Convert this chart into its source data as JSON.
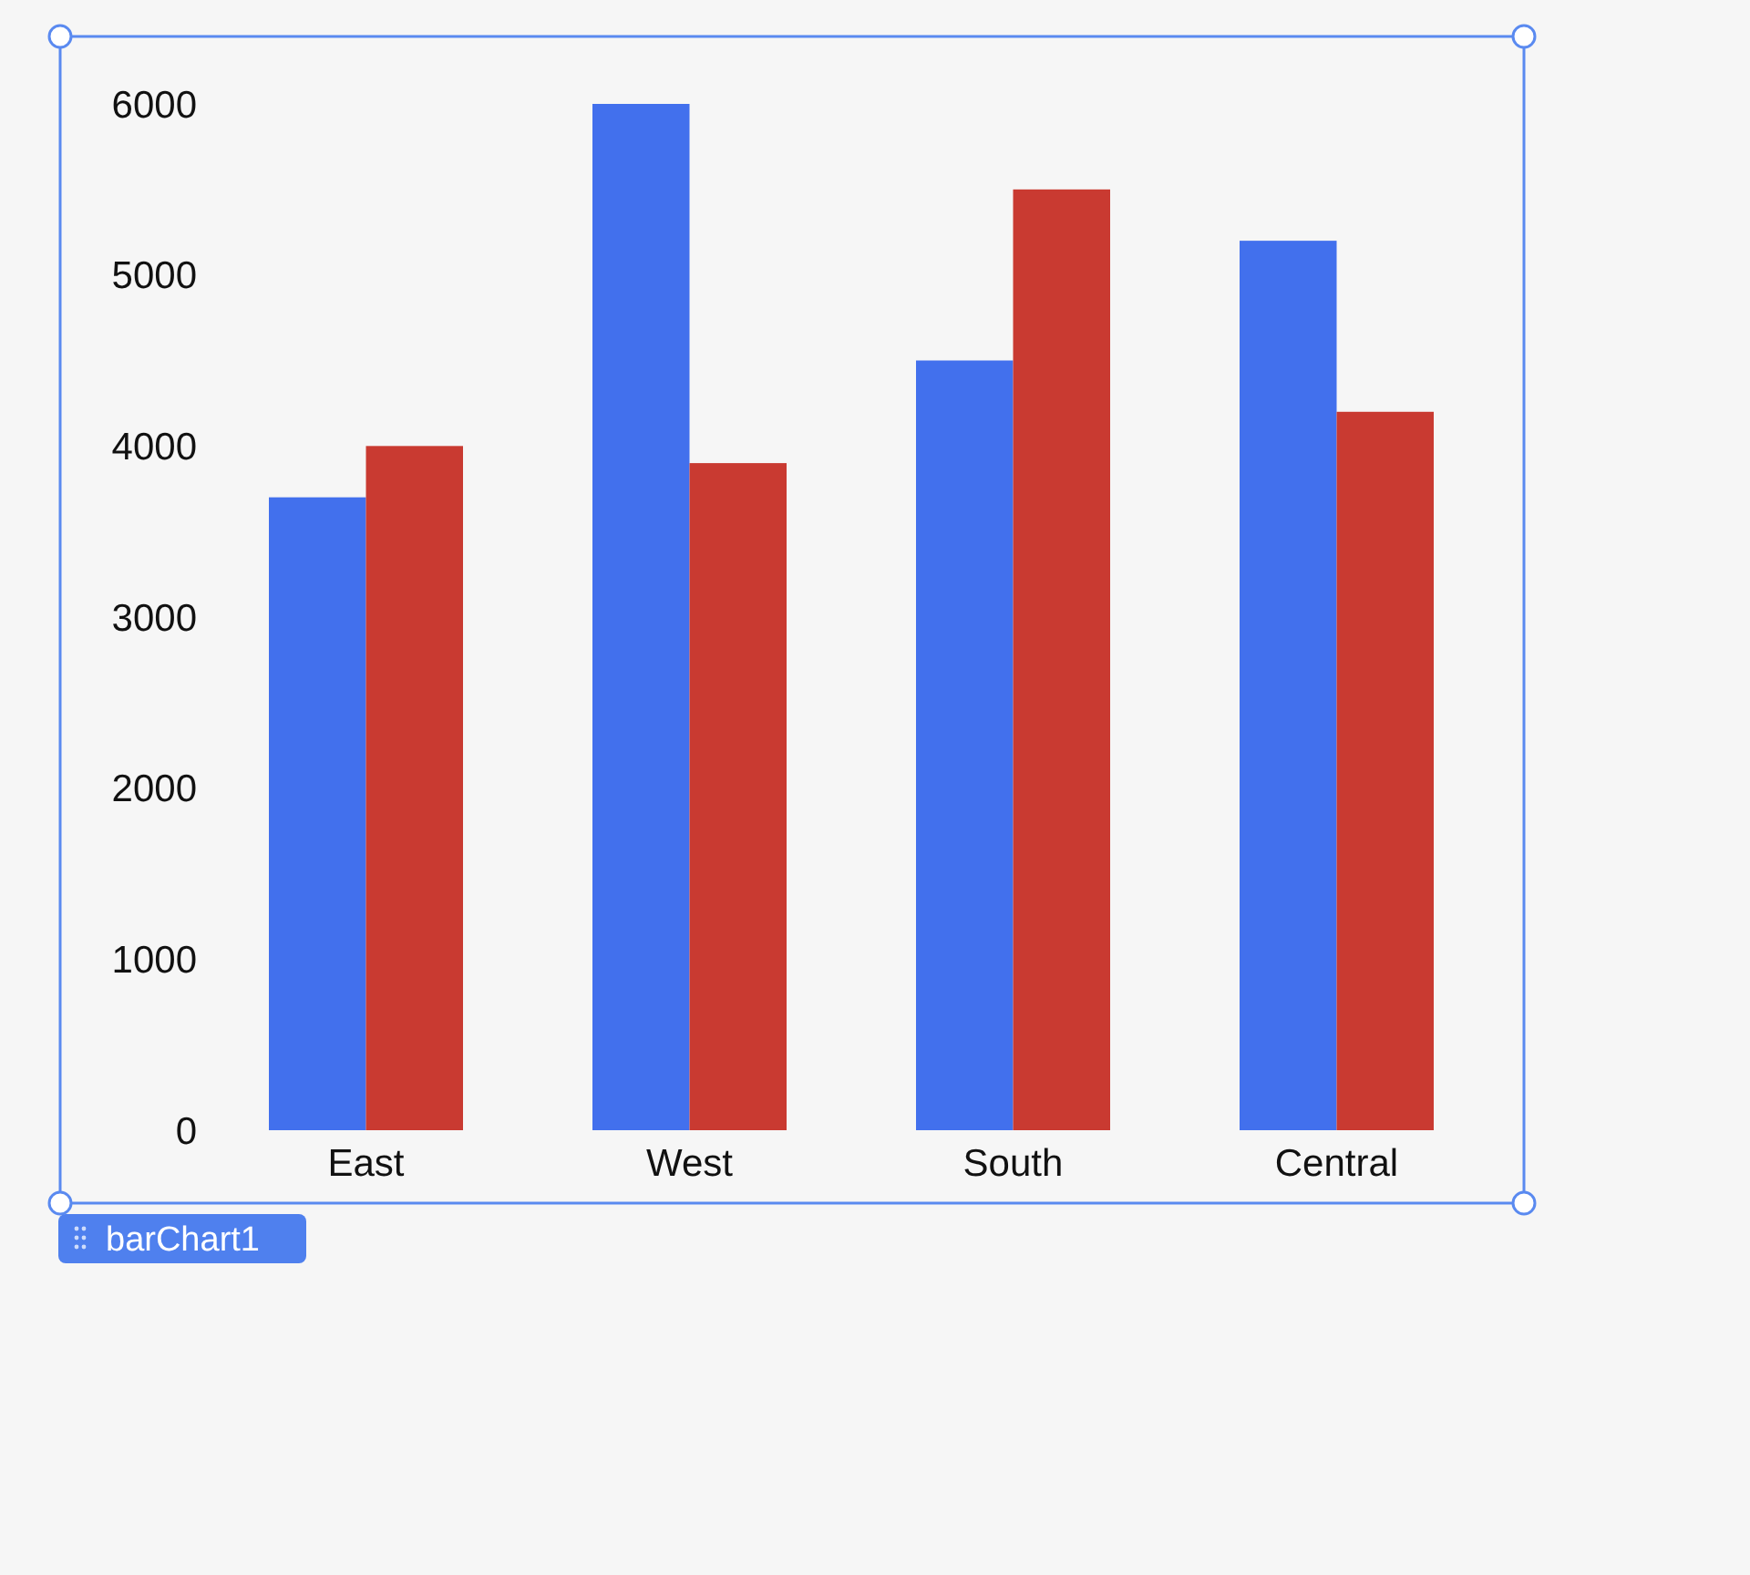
{
  "chart_data": {
    "type": "bar",
    "categories": [
      "East",
      "West",
      "South",
      "Central"
    ],
    "series": [
      {
        "color": "#4270ed",
        "values": [
          3700,
          6000,
          4500,
          5200
        ]
      },
      {
        "color": "#c93a31",
        "values": [
          4000,
          3900,
          5500,
          4200
        ]
      }
    ],
    "ylim": [
      0,
      6000
    ],
    "yticks": [
      0,
      1000,
      2000,
      3000,
      4000,
      5000,
      6000
    ],
    "grid": false,
    "annotations": [
      "barChart1"
    ]
  }
}
